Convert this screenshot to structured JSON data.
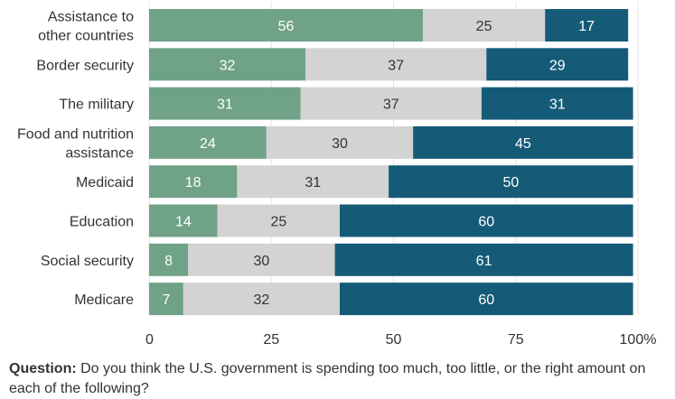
{
  "chart_data": {
    "type": "bar",
    "orientation": "horizontal",
    "stacked": true,
    "categories": [
      [
        "Assistance to",
        "other countries"
      ],
      [
        "Border security"
      ],
      [
        "The military"
      ],
      [
        "Food and nutrition",
        "assistance"
      ],
      [
        "Medicaid"
      ],
      [
        "Education"
      ],
      [
        "Social security"
      ],
      [
        "Medicare"
      ]
    ],
    "series": [
      {
        "color": "#6fa287",
        "label_color": "#ffffff",
        "values": [
          56,
          32,
          31,
          24,
          18,
          14,
          8,
          7
        ]
      },
      {
        "color": "#d3d3d3",
        "label_color": "#333333",
        "values": [
          25,
          37,
          37,
          30,
          31,
          25,
          30,
          32
        ]
      },
      {
        "color": "#155b78",
        "label_color": "#ffffff",
        "values": [
          17,
          29,
          31,
          45,
          50,
          60,
          61,
          60
        ]
      }
    ],
    "xlim": [
      0,
      100
    ],
    "xticks": [
      {
        "value": 0,
        "label": "0"
      },
      {
        "value": 25,
        "label": "25"
      },
      {
        "value": 50,
        "label": "50"
      },
      {
        "value": 75,
        "label": "75"
      },
      {
        "value": 100,
        "label": "100%"
      }
    ],
    "grid": true,
    "legend": "none"
  },
  "question": {
    "label": "Question:",
    "text": " Do you think the U.S. government is spending too much, too little, or the right amount on each of the following?"
  }
}
